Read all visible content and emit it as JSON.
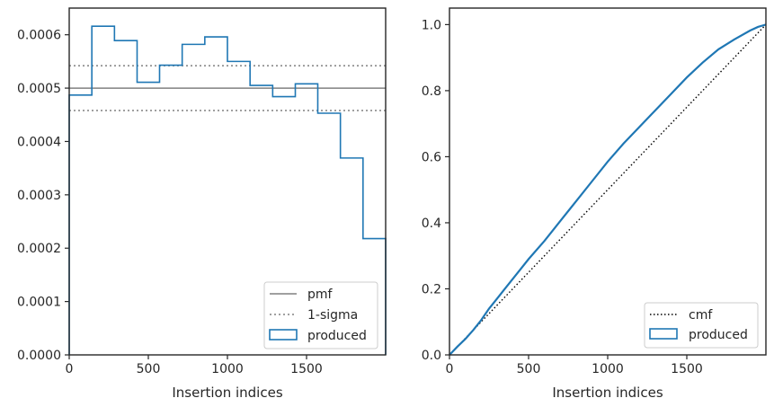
{
  "chart_data": [
    {
      "type": "step",
      "xlabel": "Insertion indices",
      "ylabel": "",
      "xlim": [
        0,
        2000
      ],
      "ylim": [
        0,
        0.00065
      ],
      "xticks": [
        0,
        500,
        1000,
        1500
      ],
      "xtick_labels": [
        "0",
        "500",
        "1000",
        "1500"
      ],
      "yticks": [
        0,
        0.0001,
        0.0002,
        0.0003,
        0.0004,
        0.0005,
        0.0006
      ],
      "ytick_labels": [
        "0.0000",
        "0.0001",
        "0.0002",
        "0.0003",
        "0.0004",
        "0.0005",
        "0.0006"
      ],
      "pmf": 0.0005,
      "sigma_upper": 0.000542,
      "sigma_lower": 0.000458,
      "bin_edges": [
        0,
        143,
        286,
        429,
        571,
        714,
        857,
        1000,
        1143,
        1286,
        1429,
        1571,
        1714,
        1857,
        2000
      ],
      "produced": [
        0.000487,
        0.000616,
        0.000589,
        0.000511,
        0.000543,
        0.000582,
        0.000596,
        0.00055,
        0.000505,
        0.000484,
        0.000508,
        0.000453,
        0.000369,
        0.000218
      ],
      "legend_position": "lower-right",
      "legend": [
        "pmf",
        "1-sigma",
        "produced"
      ],
      "colors": {
        "pmf": "#808080",
        "sigma": "#808080",
        "produced": "#1f77b4"
      }
    },
    {
      "type": "line",
      "xlabel": "Insertion indices",
      "ylabel": "",
      "xlim": [
        0,
        2000
      ],
      "ylim": [
        0,
        1.05
      ],
      "xticks": [
        0,
        500,
        1000,
        1500
      ],
      "xtick_labels": [
        "0",
        "500",
        "1000",
        "1500"
      ],
      "yticks": [
        0,
        0.2,
        0.4,
        0.6,
        0.8,
        1.0
      ],
      "ytick_labels": [
        "0.0",
        "0.2",
        "0.4",
        "0.6",
        "0.8",
        "1.0"
      ],
      "cmf": {
        "x": [
          0,
          2000
        ],
        "y": [
          0,
          1
        ]
      },
      "produced": {
        "x": [
          0,
          50,
          100,
          150,
          200,
          250,
          300,
          350,
          400,
          450,
          500,
          600,
          700,
          800,
          900,
          1000,
          1100,
          1200,
          1300,
          1400,
          1500,
          1600,
          1700,
          1800,
          1900,
          1950,
          2000
        ],
        "y": [
          0,
          0.025,
          0.048,
          0.075,
          0.105,
          0.14,
          0.17,
          0.2,
          0.23,
          0.26,
          0.29,
          0.345,
          0.405,
          0.465,
          0.525,
          0.585,
          0.64,
          0.69,
          0.74,
          0.79,
          0.84,
          0.885,
          0.925,
          0.955,
          0.982,
          0.993,
          1.0
        ]
      },
      "legend_position": "lower-right",
      "legend": [
        "cmf",
        "produced"
      ],
      "colors": {
        "cmf": "#000000",
        "produced": "#1f77b4"
      }
    }
  ]
}
